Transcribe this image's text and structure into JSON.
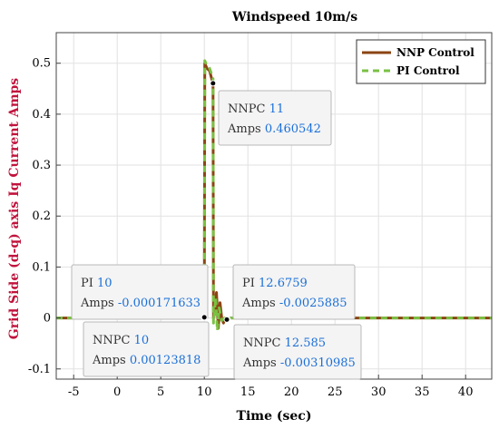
{
  "chart_data": {
    "type": "line",
    "title": "Windspeed 10m/s",
    "xlabel": "Time (sec)",
    "ylabel": "Grid Side (d-q) axis Iq Current Amps",
    "xlim": [
      -7,
      43
    ],
    "ylim": [
      -0.12,
      0.56
    ],
    "xticks": [
      -5,
      0,
      5,
      10,
      15,
      20,
      25,
      30,
      35,
      40
    ],
    "yticks": [
      -0.1,
      0,
      0.1,
      0.2,
      0.3,
      0.4,
      0.5
    ],
    "grid": true,
    "legend_position": "top-right",
    "series": [
      {
        "name": "NNP Control",
        "color": "#8b4513",
        "style": "solid",
        "x": [
          -7,
          10,
          10.05,
          10.3,
          10.6,
          11,
          11.05,
          11.4,
          11.6,
          11.8,
          12,
          12.2,
          12.4,
          12.585,
          13,
          20,
          30,
          43
        ],
        "y": [
          0,
          0,
          0.5,
          0.49,
          0.485,
          0.46,
          0.0,
          0.05,
          -0.02,
          0.03,
          0.0,
          -0.01,
          0.0,
          -0.0031,
          0,
          0,
          0,
          0
        ]
      },
      {
        "name": "PI Control",
        "color": "#7ac143",
        "style": "dashed",
        "x": [
          -7,
          10,
          10.05,
          10.3,
          10.6,
          11,
          11.05,
          11.3,
          11.5,
          11.7,
          12,
          12.3,
          12.6759,
          13,
          20,
          30,
          43
        ],
        "y": [
          0,
          0,
          0.505,
          0.495,
          0.49,
          0.47,
          -0.01,
          0.04,
          -0.025,
          0.02,
          -0.005,
          0.0,
          -0.0026,
          0,
          0,
          0,
          0
        ]
      }
    ],
    "datatips": [
      {
        "x": 11,
        "y": 0.460542,
        "series": "NNPC",
        "label_x": "NNPC",
        "value_x": "11",
        "label_y": "Amps",
        "value_y": "0.460542"
      },
      {
        "x": 10,
        "y": -0.000171633,
        "series": "PI",
        "label_x": "PI",
        "value_x": "10",
        "label_y": "Amps",
        "value_y": "-0.000171633"
      },
      {
        "x": 12.6759,
        "y": -0.0025885,
        "series": "PI",
        "label_x": "PI",
        "value_x": "12.6759",
        "label_y": "Amps",
        "value_y": "-0.0025885"
      },
      {
        "x": 10,
        "y": 0.00123818,
        "series": "NNPC",
        "label_x": "NNPC",
        "value_x": "10",
        "label_y": "Amps",
        "value_y": "0.00123818"
      },
      {
        "x": 12.585,
        "y": -0.00310985,
        "series": "NNPC",
        "label_x": "NNPC",
        "value_x": "12.585",
        "label_y": "Amps",
        "value_y": "-0.00310985"
      }
    ]
  },
  "colors": {
    "ylabel": "#c0143c",
    "value_text": "#1a6fd8",
    "tip_fill": "#f4f4f4",
    "tip_border": "#b8b8b8"
  }
}
